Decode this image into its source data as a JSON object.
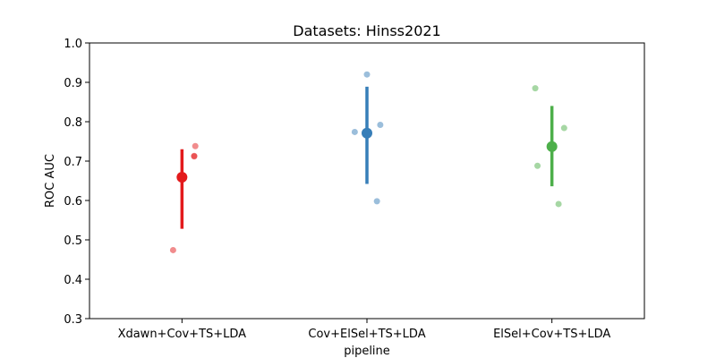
{
  "chart_data": {
    "type": "scatter",
    "title": "Datasets:  Hinss2021",
    "xlabel": "pipeline",
    "ylabel": "ROC AUC",
    "ylim": [
      0.3,
      1.0
    ],
    "yticks": [
      "0.3",
      "0.4",
      "0.5",
      "0.6",
      "0.7",
      "0.8",
      "0.9",
      "1.0"
    ],
    "categories": [
      "Xdawn+Cov+TS+LDA",
      "Cov+ElSel+TS+LDA",
      "ElSel+Cov+TS+LDA"
    ],
    "grid": false,
    "series": [
      {
        "category": "Xdawn+Cov+TS+LDA",
        "color": "#e31a1c",
        "points": [
          0.474,
          0.712,
          0.713,
          0.738
        ],
        "mean": 0.659,
        "ci": [
          0.528,
          0.73
        ]
      },
      {
        "category": "Cov+ElSel+TS+LDA",
        "color": "#377eb8",
        "points": [
          0.774,
          0.92,
          0.792,
          0.598
        ],
        "mean": 0.771,
        "ci": [
          0.642,
          0.889
        ]
      },
      {
        "category": "ElSel+Cov+TS+LDA",
        "color": "#4daf4a",
        "points": [
          0.885,
          0.688,
          0.784,
          0.591
        ],
        "mean": 0.737,
        "ci": [
          0.636,
          0.84
        ]
      }
    ]
  }
}
